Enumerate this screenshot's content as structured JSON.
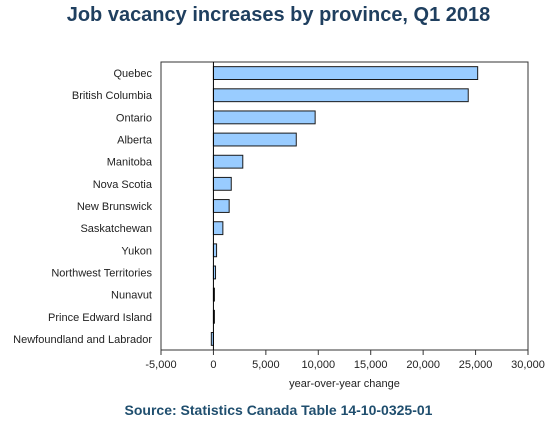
{
  "chart_data": {
    "type": "bar",
    "orientation": "horizontal",
    "title": "Job vacancy increases by province, Q1 2018",
    "xlabel": "year-over-year change",
    "ylabel": "",
    "source": "Source: Statistics Canada Table 14-10-0325-01",
    "xlim": [
      -5000,
      30000
    ],
    "x_ticks": [
      -5000,
      0,
      5000,
      10000,
      15000,
      20000,
      25000,
      30000
    ],
    "x_tick_labels": [
      "-5,000",
      "0",
      "5,000",
      "10,000",
      "15,000",
      "20,000",
      "25,000",
      "30,000"
    ],
    "grid": false,
    "legend": "none",
    "bar_color": "#99ccff",
    "bar_edge_color": "#1a1a1a",
    "categories": [
      "Quebec",
      "British Columbia",
      "Ontario",
      "Alberta",
      "Manitoba",
      "Nova Scotia",
      "New Brunswick",
      "Saskatchewan",
      "Yukon",
      "Northwest Territories",
      "Nunavut",
      "Prince Edward Island",
      "Newfoundland and Labrador"
    ],
    "values": [
      25200,
      24300,
      9700,
      7900,
      2800,
      1700,
      1500,
      900,
      300,
      200,
      50,
      50,
      -200
    ]
  }
}
